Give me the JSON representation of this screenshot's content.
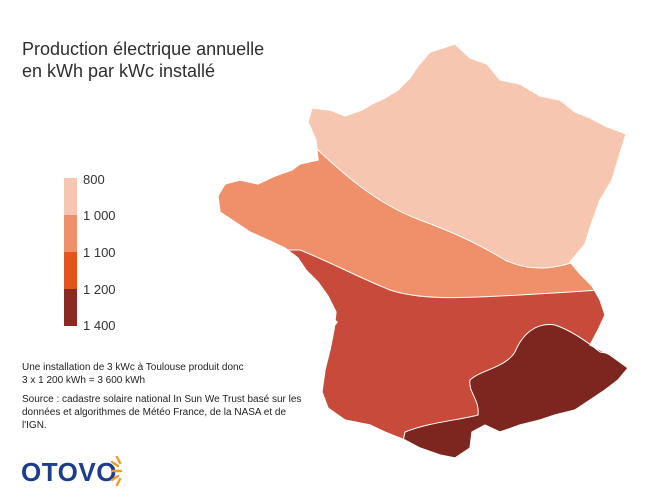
{
  "title": {
    "line1": "Production électrique annuelle",
    "line2": "en kWh par kWc installé"
  },
  "legend": {
    "ticks": [
      "800",
      "1 000",
      "1 100",
      "1 200",
      "1 400"
    ],
    "colors": [
      "#f6c6b0",
      "#ef906a",
      "#e4541c",
      "#8a2a22"
    ]
  },
  "regions": [
    {
      "name": "800-1000",
      "color": "#f6c6b0"
    },
    {
      "name": "1000-1100",
      "color": "#ef906a"
    },
    {
      "name": "1100-1200",
      "color": "#c84a3a"
    },
    {
      "name": "1200-1400",
      "color": "#7d2620"
    }
  ],
  "notes": {
    "calc_line1": "Une installation de 3 kWc à Toulouse produit donc",
    "calc_line2": "3 x 1 200 kWh = 3 600 kWh",
    "source": "Source : cadastre solaire national In Sun We Trust basé sur les données et algorithmes de Météo France, de la NASA et de l'IGN."
  },
  "logo": {
    "text": "OTOVO",
    "color": "#1d3c8c",
    "accent": "#f39a2b"
  }
}
